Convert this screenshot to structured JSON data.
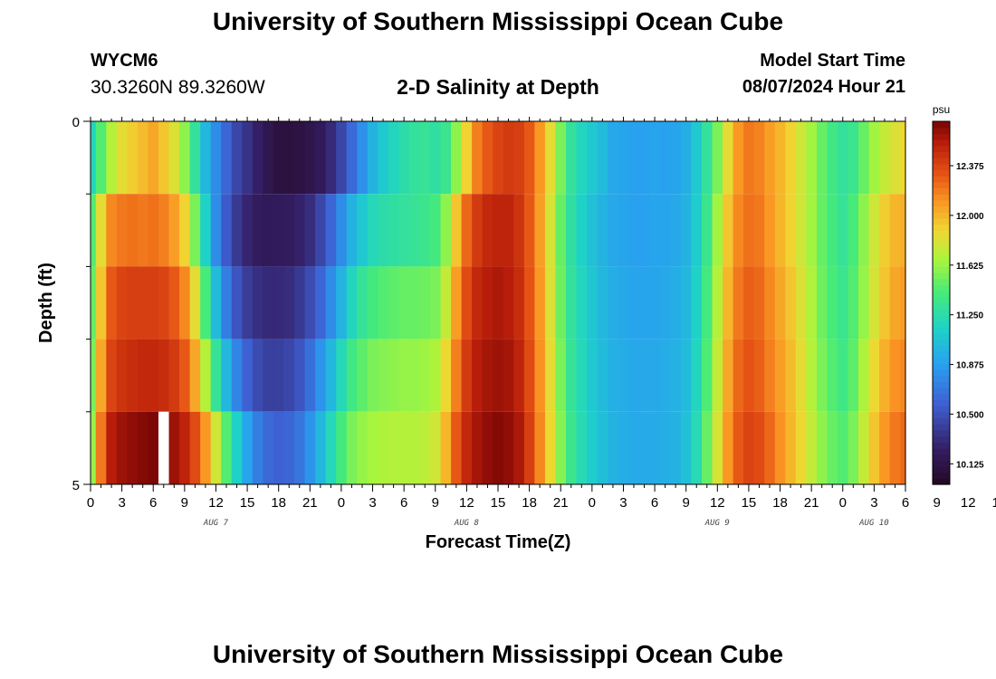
{
  "header": {
    "title": "University of Southern Mississippi Ocean Cube",
    "station_id": "WYCM6",
    "station_coords": "30.3260N  89.3260W",
    "chart_title": "2-D Salinity at Depth",
    "model_start_label": "Model Start Time",
    "model_start_value": "08/07/2024 Hour 21"
  },
  "footer": {
    "title": "University of Southern Mississippi Ocean Cube"
  },
  "chart_data": {
    "type": "heatmap",
    "title": "2-D Salinity at Depth",
    "xlabel": "Forecast Time(Z)",
    "ylabel": "Depth (ft)",
    "x_hours": [
      0,
      1,
      2,
      3,
      4,
      5,
      6,
      7,
      8,
      9,
      10,
      11,
      12,
      13,
      14,
      15,
      16,
      17,
      18,
      19,
      20,
      21,
      22,
      23,
      24,
      25,
      26,
      27,
      28,
      29,
      30,
      31,
      32,
      33,
      34,
      35,
      36,
      37,
      38,
      39,
      40,
      41,
      42,
      43,
      44,
      45,
      46,
      47,
      48,
      49,
      50,
      51,
      52,
      53,
      54,
      55,
      56,
      57,
      58,
      59,
      60,
      61,
      62,
      63,
      64,
      65,
      66,
      67,
      68,
      69,
      70,
      71,
      72,
      73,
      74,
      75,
      76,
      77,
      78
    ],
    "xlim": [
      0,
      78
    ],
    "x_tick_step": 3,
    "x_tick_labels": [
      "0",
      "3",
      "6",
      "9",
      "12",
      "15",
      "18",
      "21",
      "0",
      "3",
      "6",
      "9",
      "12",
      "15",
      "18",
      "21",
      "0",
      "3",
      "6",
      "9",
      "12",
      "15",
      "18",
      "21",
      "0",
      "3",
      "6",
      "9",
      "12",
      "15",
      "18",
      "21",
      "0",
      "3",
      "6",
      "9",
      "12",
      "15",
      "18",
      "21",
      "0",
      "3",
      "6"
    ],
    "date_labels": [
      {
        "label": "AUG 7",
        "hour": 12
      },
      {
        "label": "AUG 8",
        "hour": 36
      },
      {
        "label": "AUG 9",
        "hour": 60
      },
      {
        "label": "AUG 10",
        "hour": 75
      }
    ],
    "ylim": [
      0,
      5
    ],
    "y_tick_labels": [
      {
        "depth": 0,
        "label": "0"
      },
      {
        "depth": 5,
        "label": "5"
      }
    ],
    "y_minor_ticks": [
      1,
      2,
      3,
      4
    ],
    "depth_layers": [
      0,
      1,
      2,
      3,
      4,
      5
    ],
    "series": [
      {
        "name": "0 ft",
        "values": [
          11.18,
          11.45,
          11.7,
          11.85,
          11.92,
          11.98,
          12.05,
          11.95,
          11.82,
          11.6,
          11.3,
          11.0,
          10.78,
          10.6,
          10.45,
          10.35,
          10.25,
          10.16,
          10.1,
          10.09,
          10.11,
          10.15,
          10.2,
          10.3,
          10.45,
          10.62,
          10.8,
          10.98,
          11.1,
          11.18,
          11.25,
          11.3,
          11.32,
          11.28,
          11.35,
          11.6,
          11.9,
          12.18,
          12.3,
          12.38,
          12.42,
          12.4,
          12.3,
          12.1,
          11.85,
          11.55,
          11.3,
          11.18,
          11.1,
          11.02,
          10.92,
          10.9,
          10.88,
          10.88,
          10.9,
          10.88,
          10.9,
          10.95,
          11.1,
          11.3,
          11.55,
          11.85,
          12.1,
          12.2,
          12.17,
          12.08,
          12.0,
          11.9,
          11.78,
          11.65,
          11.5,
          11.38,
          11.3,
          11.35,
          11.5,
          11.65,
          11.75,
          11.82,
          11.88
        ]
      },
      {
        "name": "1 ft",
        "values": [
          11.45,
          11.85,
          12.15,
          12.2,
          12.22,
          12.2,
          12.22,
          12.18,
          12.08,
          11.9,
          11.55,
          11.15,
          10.78,
          10.55,
          10.38,
          10.28,
          10.22,
          10.2,
          10.21,
          10.22,
          10.26,
          10.32,
          10.45,
          10.6,
          10.78,
          10.98,
          11.1,
          11.2,
          11.25,
          11.28,
          11.3,
          11.32,
          11.35,
          11.4,
          11.6,
          11.95,
          12.25,
          12.42,
          12.5,
          12.52,
          12.52,
          12.45,
          12.3,
          12.08,
          11.8,
          11.5,
          11.28,
          11.15,
          11.05,
          10.98,
          10.92,
          10.9,
          10.88,
          10.88,
          10.9,
          10.9,
          10.92,
          10.98,
          11.12,
          11.35,
          11.65,
          11.95,
          12.15,
          12.22,
          12.2,
          12.1,
          12.0,
          11.9,
          11.78,
          11.65,
          11.5,
          11.4,
          11.32,
          11.42,
          11.6,
          11.78,
          11.92,
          12.0,
          12.02
        ]
      },
      {
        "name": "2 ft",
        "values": [
          11.5,
          11.95,
          12.3,
          12.38,
          12.4,
          12.4,
          12.4,
          12.38,
          12.3,
          12.15,
          11.85,
          11.42,
          11.02,
          10.72,
          10.52,
          10.4,
          10.33,
          10.3,
          10.3,
          10.32,
          10.38,
          10.48,
          10.6,
          10.78,
          10.98,
          11.18,
          11.32,
          11.4,
          11.45,
          11.48,
          11.5,
          11.5,
          11.52,
          11.55,
          11.75,
          12.08,
          12.35,
          12.5,
          12.55,
          12.58,
          12.55,
          12.48,
          12.32,
          12.1,
          11.82,
          11.52,
          11.3,
          11.18,
          11.08,
          11.0,
          10.95,
          10.92,
          10.9,
          10.9,
          10.9,
          10.92,
          10.95,
          11.0,
          11.15,
          11.4,
          11.7,
          12.0,
          12.2,
          12.28,
          12.25,
          12.15,
          12.05,
          11.95,
          11.82,
          11.68,
          11.52,
          11.42,
          11.35,
          11.45,
          11.62,
          11.8,
          11.95,
          12.05,
          12.08
        ]
      },
      {
        "name": "3 ft",
        "values": [
          11.55,
          12.05,
          12.38,
          12.45,
          12.48,
          12.5,
          12.5,
          12.48,
          12.42,
          12.3,
          12.05,
          11.7,
          11.32,
          11.0,
          10.75,
          10.58,
          10.47,
          10.42,
          10.42,
          10.45,
          10.52,
          10.65,
          10.82,
          11.0,
          11.2,
          11.38,
          11.48,
          11.55,
          11.58,
          11.6,
          11.62,
          11.62,
          11.64,
          11.68,
          11.88,
          12.18,
          12.42,
          12.55,
          12.6,
          12.62,
          12.6,
          12.52,
          12.35,
          12.12,
          11.85,
          11.55,
          11.32,
          11.2,
          11.1,
          11.02,
          10.96,
          10.94,
          10.92,
          10.92,
          10.92,
          10.94,
          10.97,
          11.02,
          11.18,
          11.44,
          11.75,
          12.05,
          12.25,
          12.32,
          12.28,
          12.18,
          12.08,
          11.98,
          11.85,
          11.7,
          11.55,
          11.45,
          11.38,
          11.48,
          11.68,
          11.88,
          12.02,
          12.12,
          12.15
        ]
      },
      {
        "name": "4 ft",
        "values": [
          11.62,
          12.2,
          12.55,
          12.62,
          12.65,
          12.68,
          12.7,
          12.68,
          12.62,
          12.52,
          12.35,
          12.1,
          11.78,
          11.45,
          11.15,
          10.9,
          10.72,
          10.62,
          10.58,
          10.6,
          10.68,
          10.82,
          11.0,
          11.2,
          11.4,
          11.55,
          11.62,
          11.66,
          11.68,
          11.7,
          11.7,
          11.7,
          11.72,
          11.78,
          12.0,
          12.3,
          12.5,
          12.6,
          12.65,
          12.68,
          12.65,
          12.58,
          12.4,
          12.15,
          11.88,
          11.58,
          11.35,
          11.22,
          11.12,
          11.04,
          10.98,
          10.95,
          10.93,
          10.93,
          10.93,
          10.95,
          10.98,
          11.05,
          11.22,
          11.5,
          11.8,
          12.1,
          12.3,
          12.38,
          12.35,
          12.25,
          12.12,
          12.0,
          11.88,
          11.74,
          11.6,
          11.5,
          11.45,
          11.55,
          11.75,
          11.95,
          12.1,
          12.2,
          12.25
        ]
      }
    ],
    "gap": {
      "hour": 7,
      "layer": 4
    },
    "colorbar": {
      "unit": "psu",
      "min": 9.97,
      "max": 12.71,
      "ticks": [
        10.125,
        10.5,
        10.875,
        11.25,
        11.625,
        12.0,
        12.375
      ],
      "tick_labels": [
        "10.125",
        "10.500",
        "10.875",
        "11.250",
        "11.625",
        "12.000",
        "12.375"
      ]
    }
  }
}
